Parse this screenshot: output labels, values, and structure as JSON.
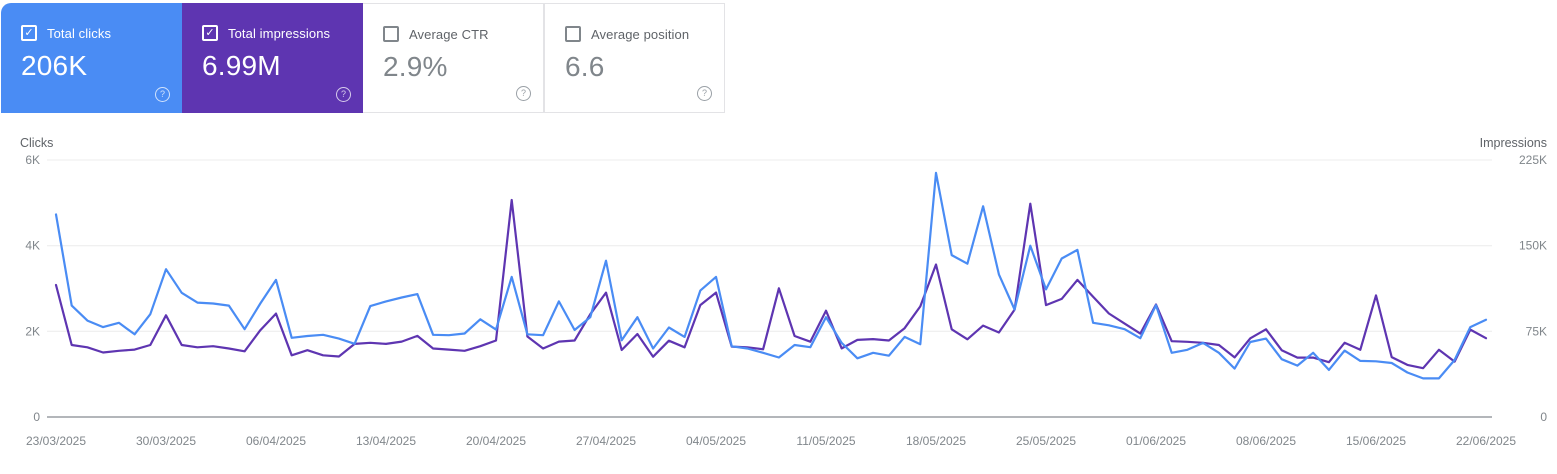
{
  "icons": {
    "help": "?",
    "check": "✓"
  },
  "cards": [
    {
      "label": "Total clicks",
      "value": "206K",
      "checked": true,
      "bg": "#4a8cf4",
      "label_color": "#ffffff",
      "value_color": "#ffffff",
      "checkbox_color": "#ffffff",
      "help_color": "rgba(255,255,255,0.75)"
    },
    {
      "label": "Total impressions",
      "value": "6.99M",
      "checked": true,
      "bg": "#5e35b1",
      "label_color": "#ffffff",
      "value_color": "#ffffff",
      "checkbox_color": "#ffffff",
      "help_color": "rgba(255,255,255,0.75)"
    },
    {
      "label": "Average CTR",
      "value": "2.9%",
      "checked": false,
      "bg": "#ffffff",
      "label_color": "#5f6368",
      "value_color": "#80868b",
      "checkbox_color": "#80868b",
      "help_color": "#9aa0a6"
    },
    {
      "label": "Average position",
      "value": "6.6",
      "checked": false,
      "bg": "#ffffff",
      "label_color": "#5f6368",
      "value_color": "#80868b",
      "checkbox_color": "#80868b",
      "help_color": "#9aa0a6"
    }
  ],
  "chart_data": {
    "type": "line",
    "grid": true,
    "legend_position": "none",
    "points_per_label": 7,
    "x_labels": [
      "23/03/2025",
      "30/03/2025",
      "06/04/2025",
      "13/04/2025",
      "20/04/2025",
      "27/04/2025",
      "04/05/2025",
      "11/05/2025",
      "18/05/2025",
      "25/05/2025",
      "01/06/2025",
      "08/06/2025",
      "15/06/2025",
      "22/06/2025"
    ],
    "left_axis": {
      "title": "Clicks",
      "max": 6000,
      "ticks": [
        {
          "label": "6K",
          "value": 6000
        },
        {
          "label": "4K",
          "value": 4000
        },
        {
          "label": "2K",
          "value": 2000
        },
        {
          "label": "0",
          "value": 0
        }
      ]
    },
    "right_axis": {
      "title": "Impressions",
      "max": 225000,
      "ticks": [
        {
          "label": "225K",
          "value": 225000
        },
        {
          "label": "150K",
          "value": 150000
        },
        {
          "label": "75K",
          "value": 75000
        },
        {
          "label": "0",
          "value": 0
        }
      ]
    },
    "series": [
      {
        "name": "Total clicks",
        "axis": "left",
        "color": "#4a8cf4",
        "values": [
          4730,
          2600,
          2250,
          2100,
          2200,
          1930,
          2400,
          3450,
          2900,
          2670,
          2650,
          2600,
          2050,
          2650,
          3200,
          1850,
          1890,
          1920,
          1830,
          1710,
          2590,
          2700,
          2790,
          2870,
          1920,
          1910,
          1950,
          2280,
          2040,
          3270,
          1930,
          1910,
          2700,
          2030,
          2330,
          3650,
          1790,
          2330,
          1600,
          2090,
          1870,
          2950,
          3270,
          1650,
          1600,
          1500,
          1390,
          1680,
          1630,
          2330,
          1730,
          1370,
          1500,
          1430,
          1870,
          1700,
          5700,
          3780,
          3580,
          4920,
          3330,
          2510,
          4000,
          2980,
          3700,
          3900,
          2200,
          2140,
          2050,
          1840,
          2610,
          1500,
          1570,
          1730,
          1500,
          1130,
          1750,
          1830,
          1350,
          1200,
          1500,
          1100,
          1550,
          1310,
          1300,
          1260,
          1040,
          900,
          900,
          1330,
          2100,
          2270
        ]
      },
      {
        "name": "Total impressions",
        "axis": "right",
        "color": "#5e35b1",
        "values": [
          115600,
          63000,
          61000,
          56500,
          58000,
          59000,
          63000,
          89000,
          63000,
          61000,
          62000,
          60000,
          57500,
          76000,
          90500,
          54000,
          58500,
          54000,
          53000,
          64000,
          65000,
          64000,
          66000,
          71000,
          60000,
          59000,
          58000,
          62000,
          67000,
          190000,
          70500,
          60000,
          66000,
          67000,
          90000,
          108900,
          58700,
          72700,
          52800,
          66800,
          61000,
          98000,
          108900,
          61600,
          61000,
          59300,
          112700,
          70900,
          65900,
          93100,
          60100,
          67500,
          68200,
          67000,
          77700,
          96800,
          133500,
          76800,
          68000,
          80000,
          74000,
          94000,
          186700,
          98000,
          103400,
          120000,
          105300,
          90600,
          81800,
          73000,
          98500,
          66400,
          65800,
          65000,
          63000,
          52200,
          68900,
          76800,
          58500,
          52000,
          52000,
          48000,
          65000,
          58800,
          106500,
          52400,
          45600,
          42700,
          58800,
          48500,
          76500,
          69000
        ]
      }
    ],
    "style": {
      "gridline_color": "#ececec",
      "baseline_color": "#b3b6ba",
      "tick_color": "#80868b",
      "axis_title_color": "#5f6368"
    }
  }
}
